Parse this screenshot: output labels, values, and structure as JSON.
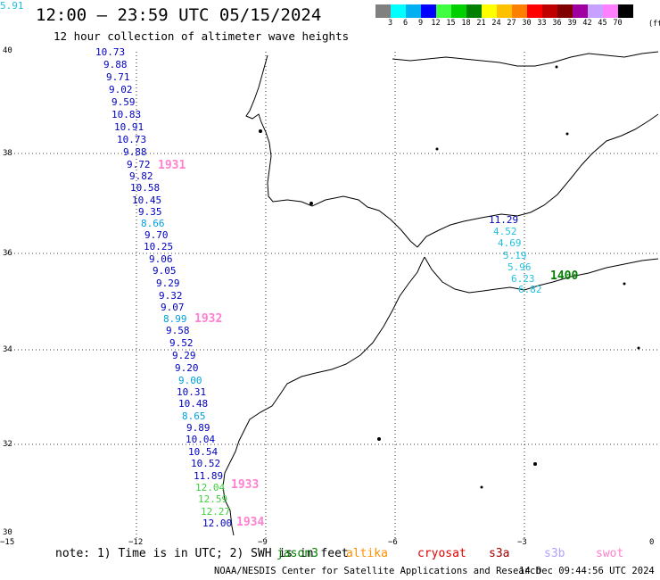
{
  "title": "12:00 – 23:59 UTC 05/15/2024",
  "subtitle": "12 hour collection of altimeter wave heights",
  "scale": {
    "colors": [
      "#808080",
      "#00ffff",
      "#00b0f0",
      "#0000ff",
      "#40ff40",
      "#00d000",
      "#008000",
      "#ffff00",
      "#ffc000",
      "#ff8000",
      "#ff0000",
      "#c00000",
      "#800000",
      "#a000a0",
      "#c8a0ff",
      "#ff80ff",
      "#000000"
    ],
    "labels": [
      "3",
      "6",
      "9",
      "12",
      "15",
      "18",
      "21",
      "24",
      "27",
      "30",
      "33",
      "36",
      "39",
      "42",
      "45",
      "70"
    ],
    "unit": "(ft)"
  },
  "axes": {
    "lat_labels": [
      "40",
      "38",
      "36",
      "34",
      "32",
      "30"
    ],
    "lon_labels": [
      "−15",
      "−12",
      "−9",
      "−6",
      "−3",
      "0"
    ]
  },
  "orbits": [
    {
      "label": "1931",
      "color": "#ff80d0"
    },
    {
      "label": "1932",
      "color": "#ff80d0"
    },
    {
      "label": "1933",
      "color": "#ff80d0"
    },
    {
      "label": "1934",
      "color": "#ff80d0"
    },
    {
      "label": "1400",
      "color": "#008000"
    }
  ],
  "wave_heights": [
    {
      "value": "10.73",
      "color": "#0000c0"
    },
    {
      "value": "9.88",
      "color": "#0000c0"
    },
    {
      "value": "9.71",
      "color": "#0000c0"
    },
    {
      "value": "9.02",
      "color": "#0000c0"
    },
    {
      "value": "9.59",
      "color": "#0000c0"
    },
    {
      "value": "10.83",
      "color": "#0000c0"
    },
    {
      "value": "10.91",
      "color": "#0000c0"
    },
    {
      "value": "10.73",
      "color": "#0000c0"
    },
    {
      "value": "9.88",
      "color": "#0000c0"
    },
    {
      "value": "9.72",
      "color": "#0000c0"
    },
    {
      "value": "9.82",
      "color": "#0000c0"
    },
    {
      "value": "10.58",
      "color": "#0000c0"
    },
    {
      "value": "10.45",
      "color": "#0000c0"
    },
    {
      "value": "9.35",
      "color": "#0000c0"
    },
    {
      "value": "8.66",
      "color": "#00a0e0"
    },
    {
      "value": "9.70",
      "color": "#0000c0"
    },
    {
      "value": "10.25",
      "color": "#0000c0"
    },
    {
      "value": "9.06",
      "color": "#0000c0"
    },
    {
      "value": "9.05",
      "color": "#0000c0"
    },
    {
      "value": "9.29",
      "color": "#0000c0"
    },
    {
      "value": "9.32",
      "color": "#0000c0"
    },
    {
      "value": "9.07",
      "color": "#0000c0"
    },
    {
      "value": "8.99",
      "color": "#00a0e0"
    },
    {
      "value": "9.58",
      "color": "#0000c0"
    },
    {
      "value": "9.52",
      "color": "#0000c0"
    },
    {
      "value": "9.29",
      "color": "#0000c0"
    },
    {
      "value": "9.20",
      "color": "#0000c0"
    },
    {
      "value": "9.00",
      "color": "#00a0e0"
    },
    {
      "value": "10.31",
      "color": "#0000c0"
    },
    {
      "value": "10.48",
      "color": "#0000c0"
    },
    {
      "value": "8.65",
      "color": "#00a0e0"
    },
    {
      "value": "9.89",
      "color": "#0000c0"
    },
    {
      "value": "10.04",
      "color": "#0000c0"
    },
    {
      "value": "10.54",
      "color": "#0000c0"
    },
    {
      "value": "10.52",
      "color": "#0000c0"
    },
    {
      "value": "11.89",
      "color": "#0000c0"
    },
    {
      "value": "12.04",
      "color": "#40d040"
    },
    {
      "value": "12.59",
      "color": "#40d040"
    },
    {
      "value": "12.27",
      "color": "#40d040"
    },
    {
      "value": "12.00",
      "color": "#0000c0"
    },
    {
      "value": "11.29",
      "color": "#0000c0"
    },
    {
      "value": "4.52",
      "color": "#20c0e0"
    },
    {
      "value": "4.69",
      "color": "#20c0e0"
    },
    {
      "value": "5.19",
      "color": "#20c0e0"
    },
    {
      "value": "5.96",
      "color": "#20c0e0"
    },
    {
      "value": "6.23",
      "color": "#20c0e0"
    },
    {
      "value": "6.82",
      "color": "#20c0e0"
    },
    {
      "value": "5.91",
      "color": "#20c0e0"
    }
  ],
  "note": {
    "text": "note:  1) Time is in UTC;  2) SWH is in feet",
    "legend": [
      {
        "label": "jason3",
        "color": "#008000"
      },
      {
        "label": "altika",
        "color": "#ff9000"
      },
      {
        "label": "cryosat",
        "color": "#e00000"
      },
      {
        "label": "s3a",
        "color": "#a00000"
      },
      {
        "label": "s3b",
        "color": "#b0a0ff"
      },
      {
        "label": "swot",
        "color": "#ff80d0"
      }
    ]
  },
  "footer": {
    "credit": "NOAA/NESDIS Center for Satellite Applications and Research",
    "timestamp": "14 Dec 09:44:56 UTC 2024"
  }
}
